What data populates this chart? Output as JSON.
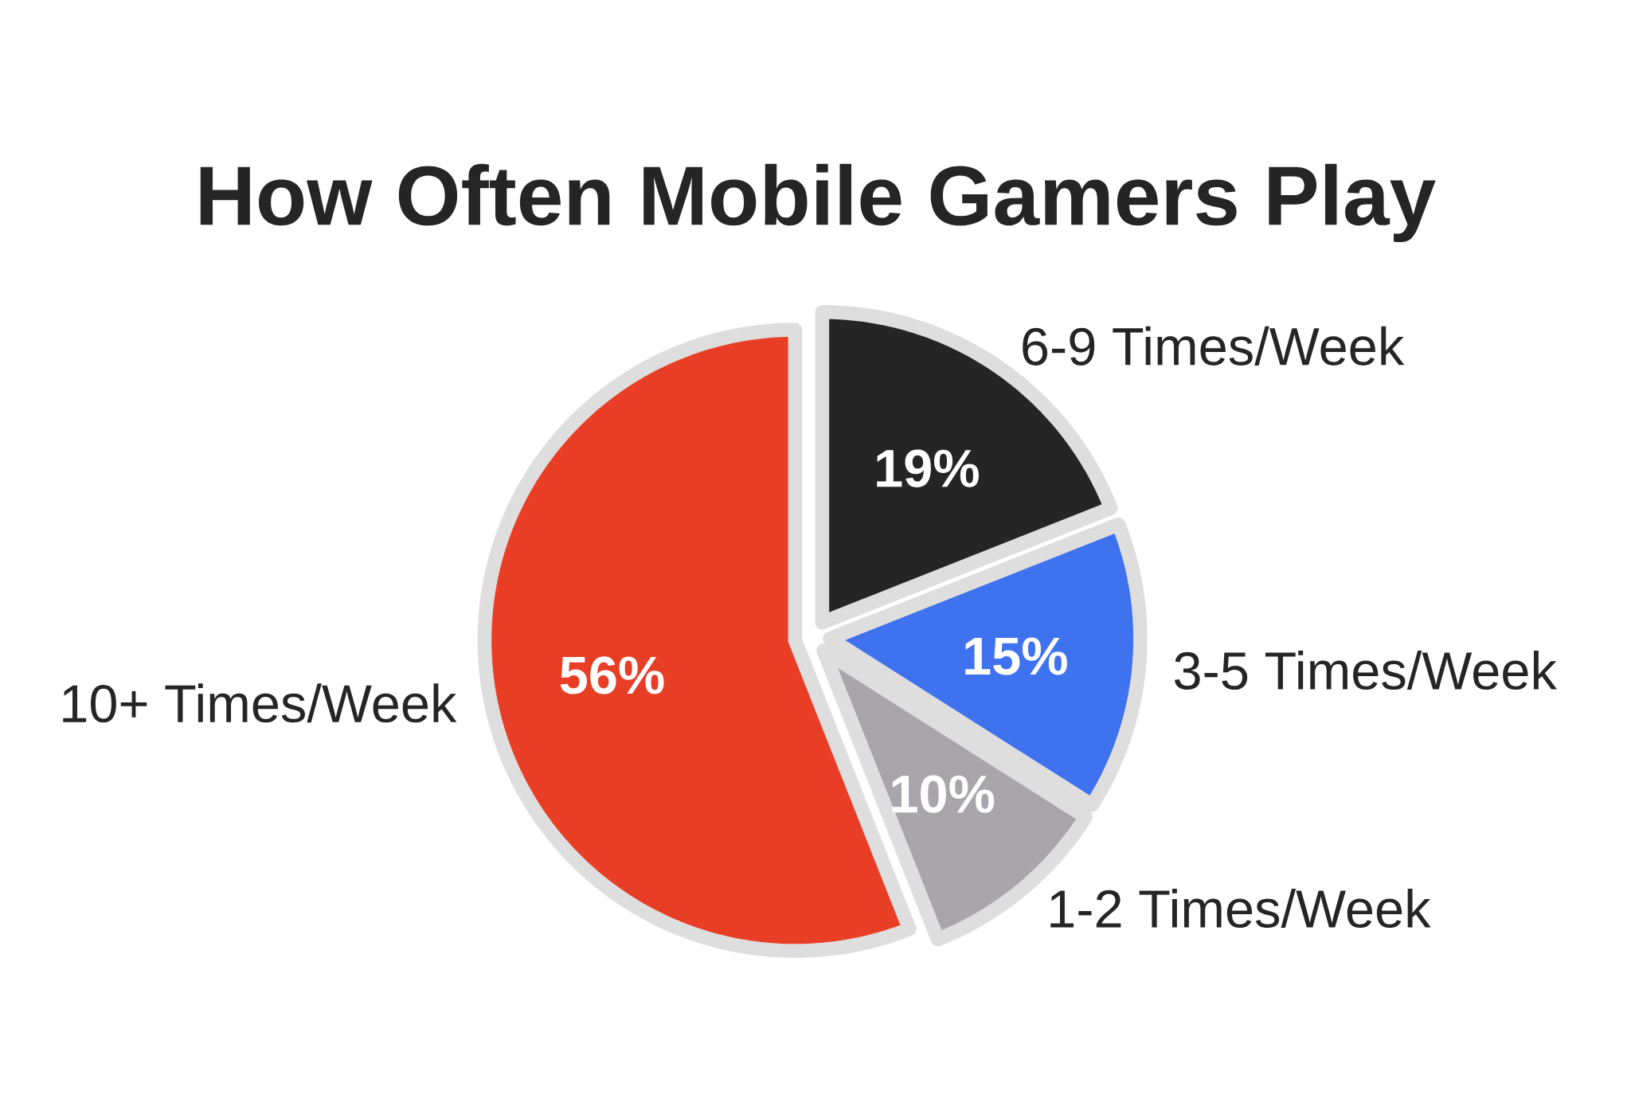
{
  "chart_data": {
    "type": "pie",
    "title": "How Often Mobile Gamers Play",
    "categories": [
      "6-9 Times/Week",
      "3-5 Times/Week",
      "1-2 Times/Week",
      "10+ Times/Week"
    ],
    "values": [
      19,
      15,
      10,
      56
    ],
    "colors": [
      "#262526",
      "#3f72ee",
      "#a8a6ab",
      "#e93e26"
    ],
    "value_labels": [
      "19%",
      "15%",
      "10%",
      "56%"
    ]
  }
}
